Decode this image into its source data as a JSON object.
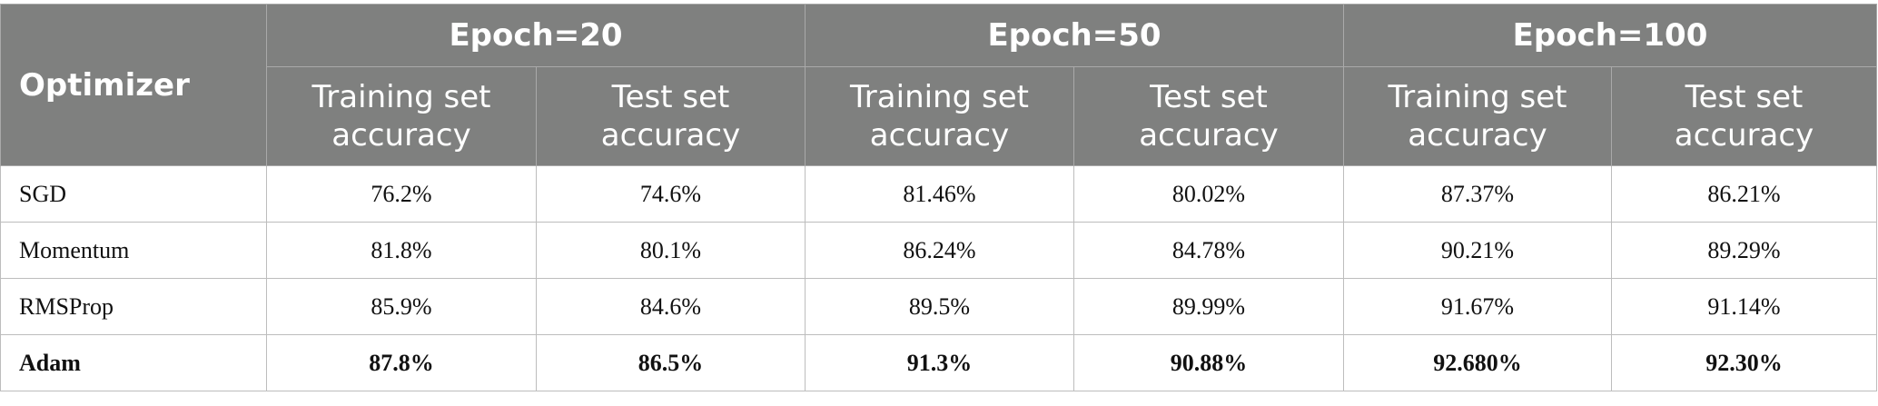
{
  "table": {
    "row_header": "Optimizer",
    "groups": [
      {
        "label": "Epoch=20",
        "columns": [
          "Training set accuracy",
          "Test set accuracy"
        ]
      },
      {
        "label": "Epoch=50",
        "columns": [
          "Training set accuracy",
          "Test set accuracy"
        ]
      },
      {
        "label": "Epoch=100",
        "columns": [
          "Training set accuracy",
          "Test set accuracy"
        ]
      }
    ],
    "rows": [
      [
        "SGD",
        "76.2%",
        "74.6%",
        "81.46%",
        "80.02%",
        "87.37%",
        "86.21%"
      ],
      [
        "Momentum",
        "81.8%",
        "80.1%",
        "86.24%",
        "84.78%",
        "90.21%",
        "89.29%"
      ],
      [
        "RMSProp",
        "85.9%",
        "84.6%",
        "89.5%",
        "89.99%",
        "91.67%",
        "91.14%"
      ],
      [
        "Adam",
        "87.8%",
        "86.5%",
        "91.3%",
        "90.88%",
        "92.680%",
        "92.30%"
      ]
    ]
  }
}
